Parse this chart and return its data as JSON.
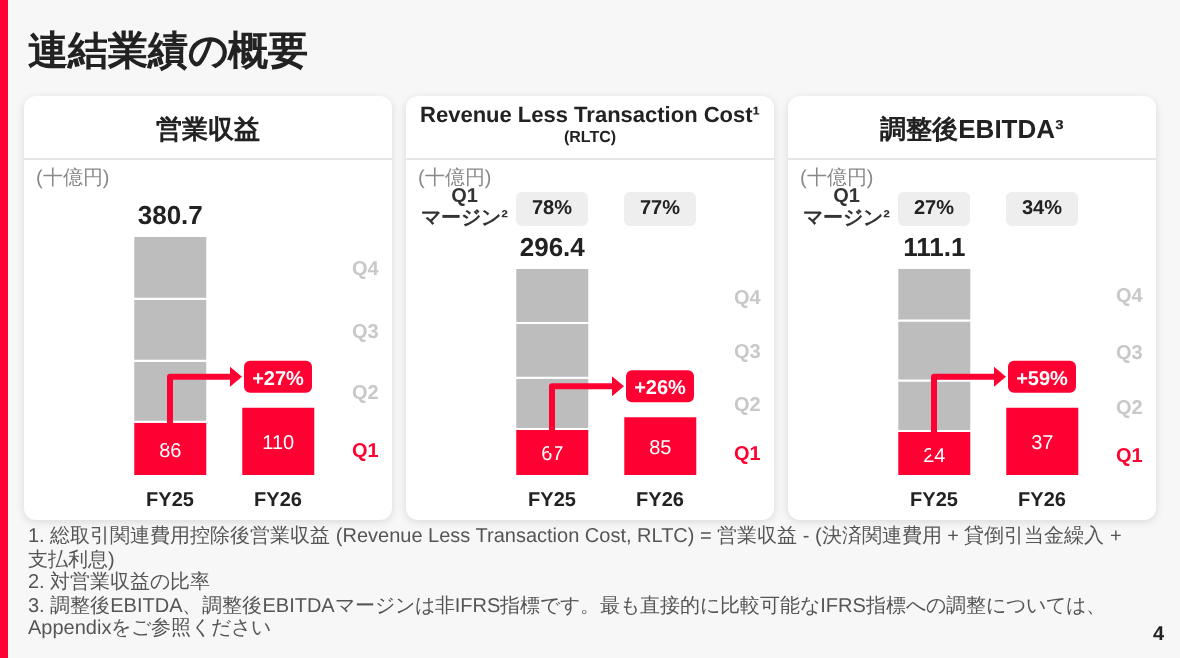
{
  "chart_data": [
    {
      "type": "bar",
      "stacked": true,
      "title": "営業収益",
      "categories": [
        "FY25",
        "FY26"
      ],
      "series": [
        {
          "name": "Q1",
          "color": "#ff0033",
          "values": [
            86,
            110
          ],
          "value_labels": [
            "86",
            "110"
          ]
        },
        {
          "name": "Q2",
          "color": "#bdbdbd",
          "values": [
            97,
            null
          ]
        },
        {
          "name": "Q3",
          "color": "#bdbdbd",
          "values": [
            98,
            null
          ]
        },
        {
          "name": "Q4",
          "color": "#bdbdbd",
          "values": [
            99.7,
            null
          ]
        }
      ],
      "totals": [
        "380.7",
        null
      ],
      "annotations": [
        "(十億円)",
        {
          "text": "+27%",
          "x": "FY26",
          "y": 110
        }
      ]
    },
    {
      "type": "bar",
      "stacked": true,
      "title": "Revenue Less Transaction Cost¹",
      "subtitle": "(RLTC)",
      "categories": [
        "FY25",
        "FY26"
      ],
      "series": [
        {
          "name": "Q1",
          "color": "#ff0033",
          "values": [
            67,
            85
          ],
          "value_labels": [
            "67",
            "85"
          ]
        },
        {
          "name": "Q2",
          "color": "#bdbdbd",
          "values": [
            73,
            null
          ]
        },
        {
          "name": "Q3",
          "color": "#bdbdbd",
          "values": [
            78,
            null
          ]
        },
        {
          "name": "Q4",
          "color": "#bdbdbd",
          "values": [
            78.4,
            null
          ]
        }
      ],
      "totals": [
        "296.4",
        null
      ],
      "annotations": [
        "(十億円)",
        "Q1 マージン²",
        "78%",
        "77%",
        {
          "text": "+26%",
          "x": "FY26",
          "y": 85
        }
      ]
    },
    {
      "type": "bar",
      "stacked": true,
      "title": "調整後EBITDA³",
      "categories": [
        "FY25",
        "FY26"
      ],
      "series": [
        {
          "name": "Q1",
          "color": "#ff0033",
          "values": [
            24,
            37
          ],
          "value_labels": [
            "24",
            "37"
          ]
        },
        {
          "name": "Q2",
          "color": "#bdbdbd",
          "values": [
            27,
            null
          ]
        },
        {
          "name": "Q3",
          "color": "#bdbdbd",
          "values": [
            32,
            null
          ]
        },
        {
          "name": "Q4",
          "color": "#bdbdbd",
          "values": [
            28.1,
            null
          ]
        }
      ],
      "totals": [
        "111.1",
        null
      ],
      "annotations": [
        "(十億円)",
        "Q1 マージン²",
        "27%",
        "34%",
        {
          "text": "+59%",
          "x": "FY26",
          "y": 37
        }
      ]
    },
    {
      "type": "other",
      "title": "連結業績の概要",
      "annotations": [
        "1. 総取引関連費用控除後営業収益 (Revenue Less Transaction Cost, RLTC) = 営業収益 - (決済関連費用 + 貸倒引当金繰入 + 支払利息)",
        "2. 対営業収益の比率",
        "3. 調整後EBITDA、調整後EBITDAマージンは非IFRS指標です。最も直接的に比較可能なIFRS指標への調整については、Appendixをご参照ください",
        "4"
      ]
    }
  ]
}
